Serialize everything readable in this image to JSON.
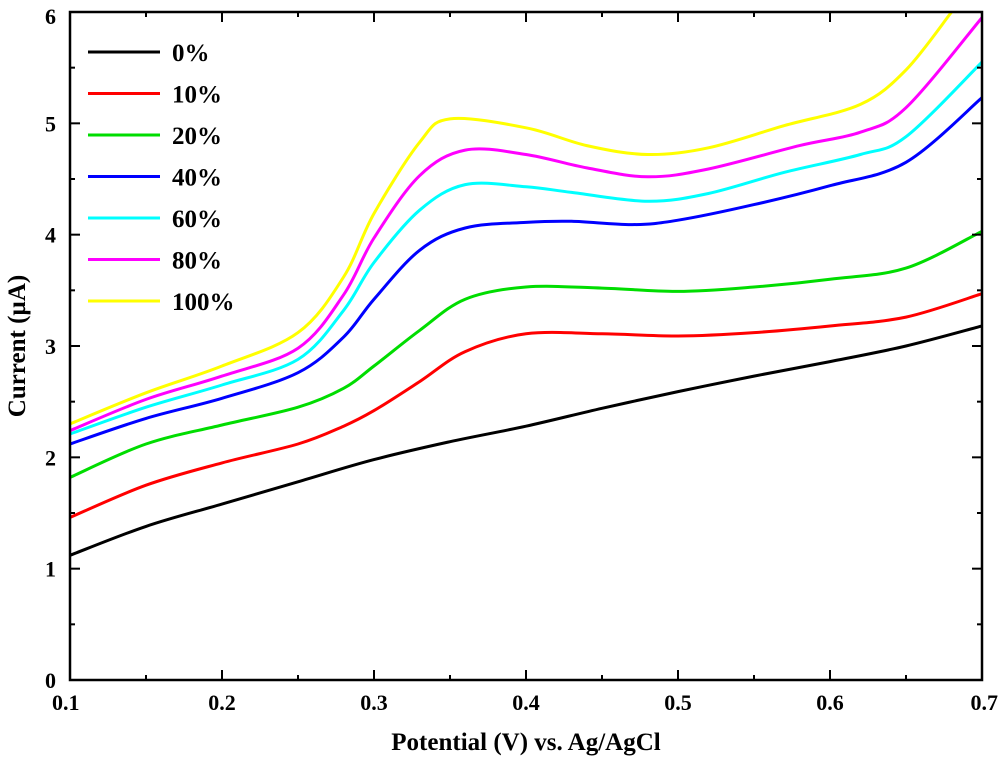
{
  "chart_data": {
    "type": "line",
    "title": "",
    "xlabel": "Potential (V) vs. Ag/AgCl",
    "ylabel": "Current (µA)",
    "xlim": [
      0.1,
      0.7
    ],
    "ylim": [
      0,
      6
    ],
    "xticks": [
      "0.1",
      "0.2",
      "0.3",
      "0.4",
      "0.5",
      "0.6",
      "0.7"
    ],
    "yticks": [
      "0",
      "1",
      "2",
      "3",
      "4",
      "5",
      "6"
    ],
    "legend_position": "top-left",
    "grid": false,
    "series": [
      {
        "name": "0%",
        "color": "#000000",
        "x": [
          0.1,
          0.15,
          0.2,
          0.25,
          0.3,
          0.35,
          0.4,
          0.45,
          0.5,
          0.55,
          0.6,
          0.65,
          0.7
        ],
        "y": [
          1.12,
          1.38,
          1.58,
          1.78,
          1.98,
          2.14,
          2.28,
          2.44,
          2.59,
          2.73,
          2.86,
          3.0,
          3.18
        ]
      },
      {
        "name": "10%",
        "color": "#ff0000",
        "x": [
          0.1,
          0.15,
          0.2,
          0.25,
          0.28,
          0.3,
          0.33,
          0.36,
          0.4,
          0.45,
          0.5,
          0.55,
          0.6,
          0.65,
          0.7
        ],
        "y": [
          1.46,
          1.75,
          1.95,
          2.12,
          2.28,
          2.42,
          2.68,
          2.95,
          3.11,
          3.11,
          3.09,
          3.12,
          3.18,
          3.26,
          3.47
        ]
      },
      {
        "name": "20%",
        "color": "#00dd00",
        "x": [
          0.1,
          0.15,
          0.2,
          0.25,
          0.28,
          0.3,
          0.33,
          0.36,
          0.4,
          0.45,
          0.5,
          0.55,
          0.6,
          0.65,
          0.7
        ],
        "y": [
          1.82,
          2.12,
          2.29,
          2.45,
          2.62,
          2.82,
          3.14,
          3.42,
          3.53,
          3.52,
          3.49,
          3.53,
          3.6,
          3.7,
          4.03
        ]
      },
      {
        "name": "40%",
        "color": "#0000ff",
        "x": [
          0.1,
          0.15,
          0.2,
          0.25,
          0.28,
          0.3,
          0.33,
          0.36,
          0.4,
          0.43,
          0.47,
          0.5,
          0.55,
          0.6,
          0.65,
          0.7
        ],
        "y": [
          2.12,
          2.35,
          2.53,
          2.76,
          3.08,
          3.42,
          3.86,
          4.06,
          4.11,
          4.12,
          4.09,
          4.13,
          4.27,
          4.44,
          4.65,
          5.23
        ]
      },
      {
        "name": "60%",
        "color": "#00ffff",
        "x": [
          0.1,
          0.15,
          0.2,
          0.25,
          0.28,
          0.3,
          0.33,
          0.36,
          0.4,
          0.43,
          0.48,
          0.52,
          0.57,
          0.62,
          0.65,
          0.7
        ],
        "y": [
          2.21,
          2.45,
          2.65,
          2.88,
          3.32,
          3.75,
          4.22,
          4.45,
          4.43,
          4.38,
          4.3,
          4.37,
          4.56,
          4.72,
          4.88,
          5.55
        ]
      },
      {
        "name": "80%",
        "color": "#ff00ff",
        "x": [
          0.1,
          0.15,
          0.2,
          0.25,
          0.28,
          0.3,
          0.33,
          0.36,
          0.4,
          0.44,
          0.48,
          0.52,
          0.58,
          0.62,
          0.65,
          0.7
        ],
        "y": [
          2.24,
          2.52,
          2.73,
          2.98,
          3.46,
          3.97,
          4.53,
          4.76,
          4.72,
          4.6,
          4.52,
          4.59,
          4.8,
          4.92,
          5.14,
          5.95
        ]
      },
      {
        "name": "100%",
        "color": "#ffff00",
        "x": [
          0.1,
          0.15,
          0.2,
          0.25,
          0.28,
          0.3,
          0.33,
          0.35,
          0.4,
          0.44,
          0.48,
          0.52,
          0.57,
          0.62,
          0.65,
          0.68
        ],
        "y": [
          2.3,
          2.58,
          2.82,
          3.12,
          3.62,
          4.19,
          4.83,
          5.04,
          4.96,
          4.8,
          4.72,
          4.78,
          4.98,
          5.17,
          5.48,
          6.0
        ]
      }
    ]
  }
}
